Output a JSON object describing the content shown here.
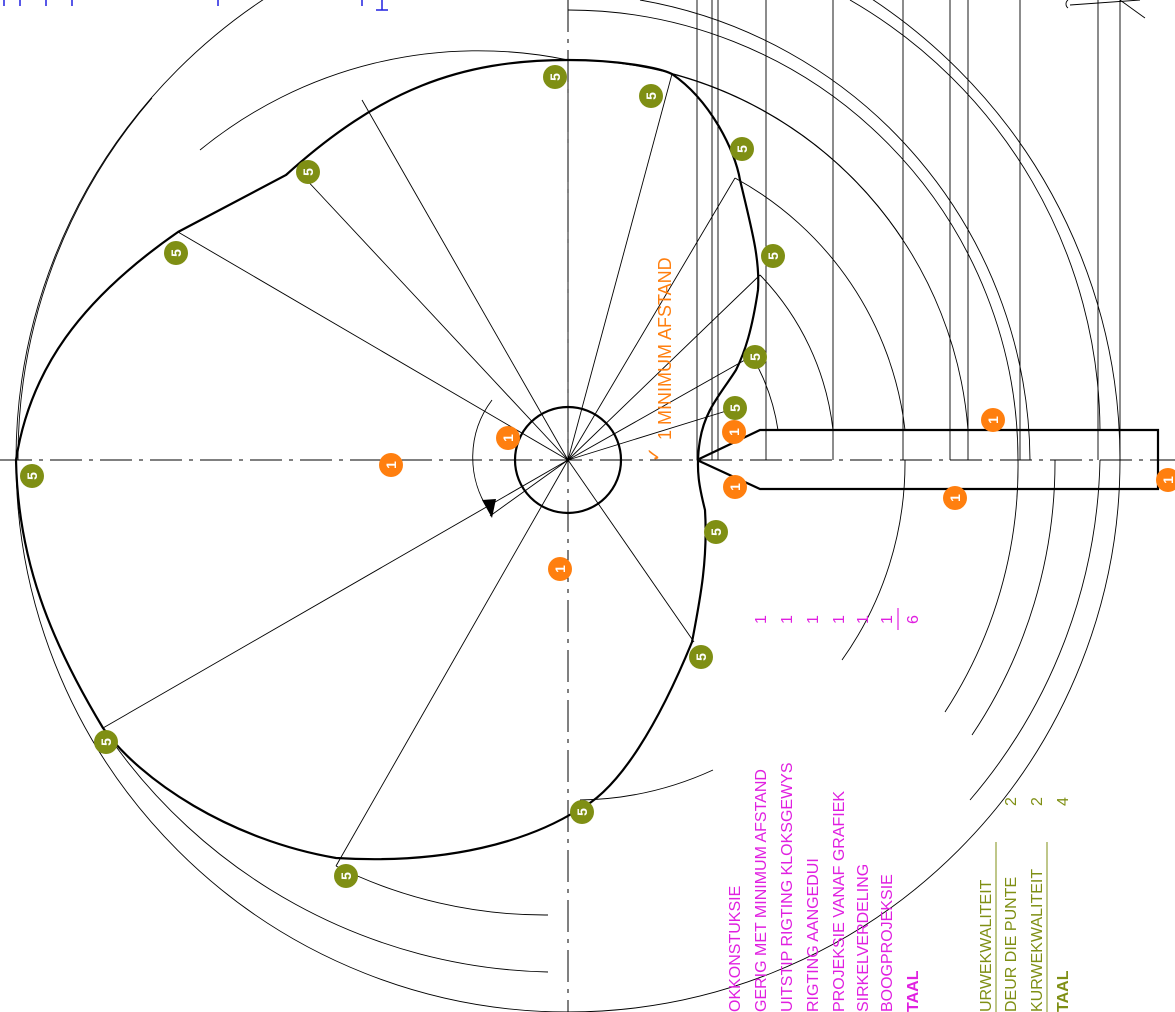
{
  "annotation": {
    "check_mark": "✓",
    "label": "1  MINIMUM AFSTAND"
  },
  "construction_scheme": {
    "items": [
      {
        "label": "OKKONSTUKSIE",
        "score": ""
      },
      {
        "label": "GERIG MET MINIMUM AFSTAND",
        "score": "1"
      },
      {
        "label": "UITSTIP RIGTING KLOKSGEWYS",
        "score": "1"
      },
      {
        "label": "RIGTING AANGEDUI",
        "score": "1"
      },
      {
        "label": "PROJEKSIE VANAF GRAFIEK",
        "score": "1"
      },
      {
        "label": "SIRKELVERDELING",
        "score": "1"
      },
      {
        "label": "BOOGPROJEKSIE",
        "score": "1"
      }
    ],
    "total_label": "TAAL",
    "total_value": "6"
  },
  "curve_scheme": {
    "items": [
      {
        "label": "URWEKWALITEIT",
        "score": ""
      },
      {
        "label": "DEUR DIE PUNTE",
        "score": "2"
      },
      {
        "label": "KURWEKWALITEIT",
        "score": "2"
      }
    ],
    "total_label": "TAAL",
    "total_value": "4"
  },
  "markers": {
    "five": "5",
    "one": "1"
  },
  "colors": {
    "marker_olive": "#7f8f14",
    "marker_orange": "#ff7f0f",
    "scheme_pink": "#e020e0",
    "scheme_olive": "#7f8f14"
  }
}
